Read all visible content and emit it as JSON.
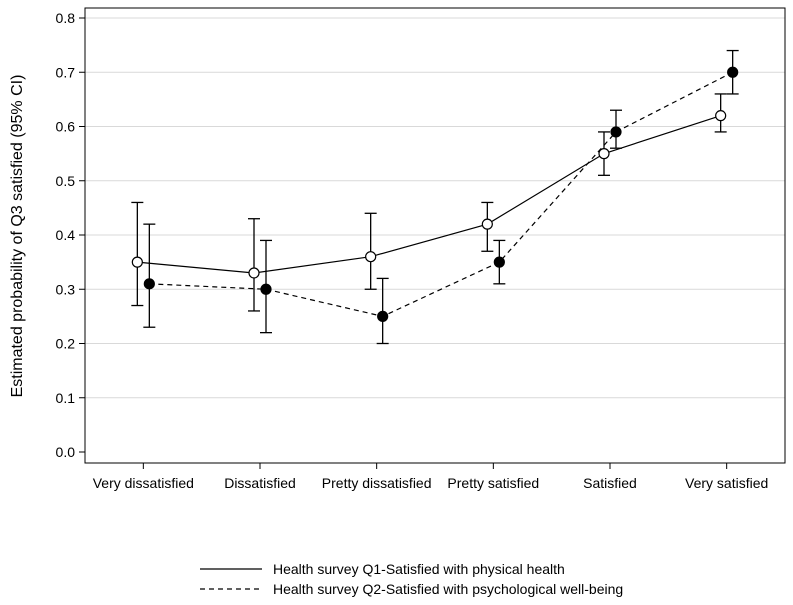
{
  "chart_data": {
    "type": "line",
    "ylabel": "Estimated probability of Q3 satisfied (95% CI)",
    "categories": [
      "Very dissatisfied",
      "Dissatisfied",
      "Pretty dissatisfied",
      "Pretty satisfied",
      "Satisfied",
      "Very satisfied"
    ],
    "ylim": [
      0,
      0.8
    ],
    "yticks": [
      "0.0",
      "0.1",
      "0.2",
      "0.3",
      "0.4",
      "0.5",
      "0.6",
      "0.7",
      "0.8"
    ],
    "grid": true,
    "legend_position": "bottom",
    "series": [
      {
        "name": "Health survey Q1-Satisfied with physical health",
        "line_style": "solid",
        "marker": "open-circle",
        "values": [
          0.35,
          0.33,
          0.36,
          0.42,
          0.55,
          0.62
        ],
        "ci_low": [
          0.27,
          0.26,
          0.3,
          0.37,
          0.51,
          0.59
        ],
        "ci_high": [
          0.46,
          0.43,
          0.44,
          0.46,
          0.59,
          0.66
        ]
      },
      {
        "name": "Health survey Q2-Satisfied with psychological well-being",
        "line_style": "dashed",
        "marker": "filled-circle",
        "values": [
          0.31,
          0.3,
          0.25,
          0.35,
          0.59,
          0.7
        ],
        "ci_low": [
          0.23,
          0.22,
          0.2,
          0.31,
          0.56,
          0.66
        ],
        "ci_high": [
          0.42,
          0.39,
          0.32,
          0.39,
          0.63,
          0.74
        ]
      }
    ]
  }
}
